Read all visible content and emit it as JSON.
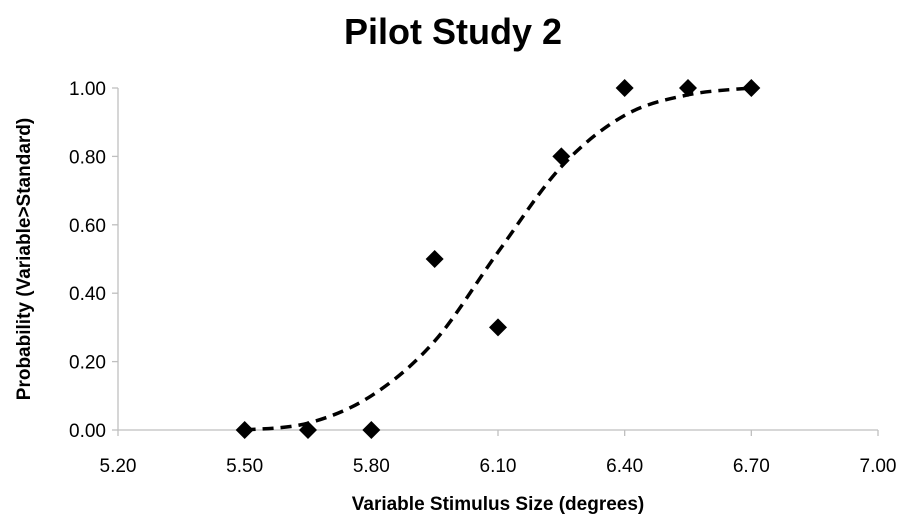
{
  "chart_data": {
    "type": "scatter",
    "title": "Pilot Study 2",
    "xlabel": "Variable Stimulus Size (degrees)",
    "ylabel": "Probability (Variable>Standard)",
    "xlim": [
      5.2,
      7.0
    ],
    "ylim": [
      0.0,
      1.0
    ],
    "x_ticks": [
      "5.20",
      "5.50",
      "5.80",
      "6.10",
      "6.40",
      "6.70",
      "7.00"
    ],
    "y_ticks": [
      "0.00",
      "0.20",
      "0.40",
      "0.60",
      "0.80",
      "1.00"
    ],
    "grid": false,
    "legend": "none",
    "marker": "diamond",
    "marker_color": "#000000",
    "series": [
      {
        "points": [
          {
            "x": 5.5,
            "y": 0.0
          },
          {
            "x": 5.65,
            "y": 0.0
          },
          {
            "x": 5.8,
            "y": 0.0
          },
          {
            "x": 5.95,
            "y": 0.5
          },
          {
            "x": 6.1,
            "y": 0.3
          },
          {
            "x": 6.25,
            "y": 0.8
          },
          {
            "x": 6.4,
            "y": 1.0
          },
          {
            "x": 6.55,
            "y": 1.0
          },
          {
            "x": 6.7,
            "y": 1.0
          }
        ]
      }
    ],
    "fit_curve": {
      "style": "dashed",
      "color": "#000000",
      "points": [
        {
          "x": 5.5,
          "y": 0.0
        },
        {
          "x": 5.65,
          "y": 0.02
        },
        {
          "x": 5.8,
          "y": 0.1
        },
        {
          "x": 5.95,
          "y": 0.26
        },
        {
          "x": 6.1,
          "y": 0.52
        },
        {
          "x": 6.25,
          "y": 0.77
        },
        {
          "x": 6.4,
          "y": 0.92
        },
        {
          "x": 6.55,
          "y": 0.98
        },
        {
          "x": 6.7,
          "y": 1.0
        }
      ]
    }
  }
}
